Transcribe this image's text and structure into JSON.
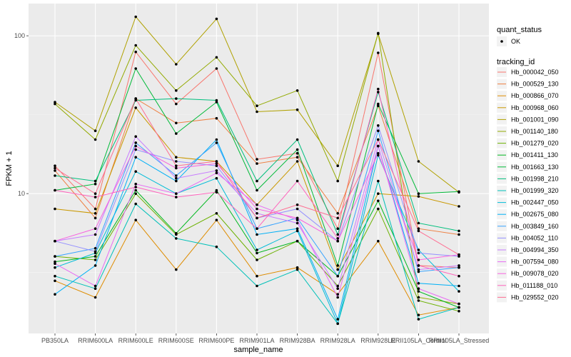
{
  "chart_data": {
    "type": "line",
    "xlabel": "sample_name",
    "ylabel": "FPKM + 1",
    "y_scale": "log10",
    "ylim": [
      1.3,
      160
    ],
    "y_ticks": [
      10,
      100
    ],
    "y_tick_labels": [
      "10",
      "100"
    ],
    "grid": true,
    "legend_position": "right",
    "categories": [
      "PB350LA",
      "RRIM600LA",
      "RRIM600LE",
      "RRIM600SE",
      "RRIM600PE",
      "RRIM901LA",
      "RRIM928BA",
      "RRIM928LA",
      "RRIM928LE",
      "RRII105LA_Control",
      "RRII105LA_Stressed"
    ],
    "legend_shape": {
      "title": "quant_status",
      "items": [
        {
          "label": "OK"
        }
      ]
    },
    "legend_color": {
      "title": "tracking_id"
    },
    "series": [
      {
        "name": "Hb_000042_050",
        "color": "#F8766D",
        "values": [
          15.0,
          8.0,
          79.0,
          37.0,
          62.0,
          16.5,
          18.0,
          6.0,
          78.0,
          3.5,
          3.4
        ]
      },
      {
        "name": "Hb_000529_130",
        "color": "#EE8043",
        "values": [
          14.0,
          7.0,
          40.0,
          28.0,
          30.0,
          15.5,
          17.0,
          7.5,
          36.0,
          6.0,
          5.5
        ]
      },
      {
        "name": "Hb_000866_070",
        "color": "#DE8C00",
        "values": [
          2.8,
          2.2,
          6.8,
          3.3,
          6.8,
          3.0,
          3.4,
          2.3,
          5.0,
          1.7,
          1.9
        ]
      },
      {
        "name": "Hb_000968_060",
        "color": "#C99800",
        "values": [
          8.0,
          7.5,
          35.0,
          17.0,
          16.0,
          8.5,
          16.0,
          3.3,
          10.0,
          9.6,
          8.3
        ]
      },
      {
        "name": "Hb_001001_090",
        "color": "#B0A100",
        "values": [
          38.0,
          25.0,
          132.0,
          66.0,
          128.0,
          33.0,
          34.0,
          15.0,
          103.0,
          16.0,
          10.2
        ]
      },
      {
        "name": "Hb_001140_180",
        "color": "#93AA00",
        "values": [
          37.0,
          22.0,
          87.0,
          45.0,
          73.0,
          36.0,
          45.0,
          12.0,
          104.0,
          2.2,
          2.0
        ]
      },
      {
        "name": "Hb_001279_020",
        "color": "#6BB100",
        "values": [
          4.0,
          3.8,
          10.0,
          5.5,
          7.5,
          3.8,
          5.0,
          2.6,
          8.0,
          2.1,
          1.8
        ]
      },
      {
        "name": "Hb_001411_130",
        "color": "#00B81F",
        "values": [
          3.7,
          4.0,
          10.5,
          5.6,
          10.5,
          4.2,
          5.0,
          3.0,
          9.0,
          2.4,
          1.9
        ]
      },
      {
        "name": "Hb_001663_130",
        "color": "#00BA38",
        "values": [
          10.5,
          11.5,
          62.0,
          24.0,
          38.0,
          10.5,
          19.0,
          3.5,
          37.0,
          10.0,
          10.3
        ]
      },
      {
        "name": "Hb_001998_210",
        "color": "#00BF7D",
        "values": [
          13.0,
          12.0,
          39.0,
          40.0,
          39.0,
          12.0,
          22.0,
          5.5,
          44.0,
          6.5,
          5.8
        ]
      },
      {
        "name": "Hb_001999_320",
        "color": "#00C0B8",
        "values": [
          3.0,
          2.5,
          8.6,
          5.2,
          4.6,
          2.6,
          3.3,
          1.5,
          12.0,
          1.6,
          1.9
        ]
      },
      {
        "name": "Hb_002447_050",
        "color": "#00BCD8",
        "values": [
          3.4,
          4.2,
          13.8,
          10.0,
          12.5,
          4.4,
          5.8,
          1.5,
          17.5,
          4.4,
          2.4
        ]
      },
      {
        "name": "Hb_002675_080",
        "color": "#00B0F6",
        "values": [
          2.3,
          3.5,
          17.0,
          12.0,
          22.0,
          5.5,
          6.0,
          1.6,
          20.0,
          2.7,
          2.6
        ]
      },
      {
        "name": "Hb_003849_160",
        "color": "#35A2FF",
        "values": [
          4.0,
          4.5,
          21.0,
          13.0,
          21.0,
          6.0,
          7.0,
          3.0,
          25.0,
          3.2,
          3.4
        ]
      },
      {
        "name": "Hb_004052_110",
        "color": "#9590FF",
        "values": [
          5.0,
          4.3,
          19.0,
          16.0,
          15.0,
          7.0,
          8.0,
          5.0,
          27.0,
          4.2,
          4.0
        ]
      },
      {
        "name": "Hb_004994_350",
        "color": "#C77CFF",
        "values": [
          5.0,
          5.5,
          23.0,
          12.5,
          14.0,
          7.5,
          6.5,
          2.5,
          22.0,
          3.3,
          3.5
        ]
      },
      {
        "name": "Hb_007594_080",
        "color": "#E76BF3",
        "values": [
          3.6,
          2.6,
          11.5,
          10.0,
          13.5,
          8.5,
          6.8,
          2.2,
          20.0,
          2.5,
          2.0
        ]
      },
      {
        "name": "Hb_009078_020",
        "color": "#F763E0",
        "values": [
          5.0,
          6.0,
          20.0,
          14.5,
          15.5,
          8.0,
          7.0,
          5.0,
          18.0,
          3.8,
          4.1
        ]
      },
      {
        "name": "Hb_011188_010",
        "color": "#FF62BC",
        "values": [
          10.5,
          9.5,
          11.0,
          9.5,
          10.2,
          6.0,
          12.0,
          5.2,
          46.0,
          3.5,
          3.0
        ]
      },
      {
        "name": "Hb_029552_020",
        "color": "#FF6C91",
        "values": [
          14.5,
          10.0,
          40.0,
          15.0,
          16.0,
          7.0,
          8.5,
          7.0,
          22.0,
          5.8,
          4.1
        ]
      }
    ]
  }
}
